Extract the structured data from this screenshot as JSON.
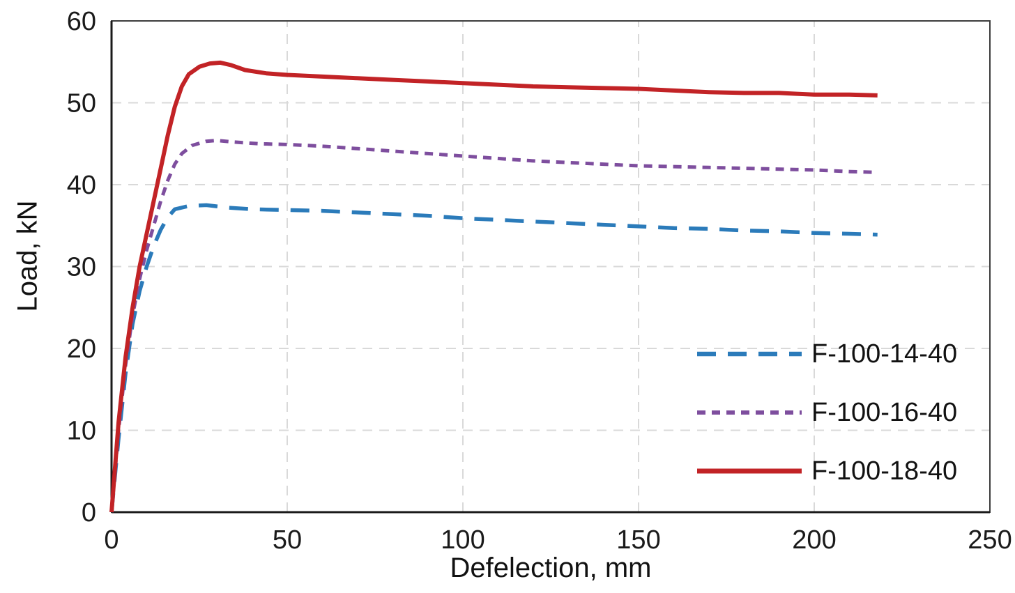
{
  "chart_data": {
    "type": "line",
    "title": "",
    "xlabel": "Defelection, mm",
    "ylabel": "Load, kN",
    "xlim": [
      0,
      250
    ],
    "ylim": [
      0,
      60
    ],
    "xticks": [
      0,
      50,
      100,
      150,
      200,
      250
    ],
    "yticks": [
      0,
      10,
      20,
      30,
      40,
      50,
      60
    ],
    "grid": "dashed",
    "grid_color": "#d9d9d9",
    "legend_position": "inside-right",
    "series": [
      {
        "name": "F-100-14-40",
        "color": "#2b7bba",
        "style": "dashed-long",
        "width": 5.5,
        "points": [
          [
            0,
            0
          ],
          [
            2,
            9
          ],
          [
            4,
            17
          ],
          [
            6,
            23
          ],
          [
            8,
            27
          ],
          [
            10,
            30
          ],
          [
            12,
            32.5
          ],
          [
            14,
            34.5
          ],
          [
            16,
            36
          ],
          [
            18,
            37
          ],
          [
            22,
            37.4
          ],
          [
            27,
            37.5
          ],
          [
            33,
            37.2
          ],
          [
            40,
            37.0
          ],
          [
            50,
            36.9
          ],
          [
            60,
            36.8
          ],
          [
            70,
            36.6
          ],
          [
            80,
            36.4
          ],
          [
            90,
            36.2
          ],
          [
            100,
            35.9
          ],
          [
            110,
            35.7
          ],
          [
            120,
            35.5
          ],
          [
            130,
            35.3
          ],
          [
            140,
            35.1
          ],
          [
            150,
            34.9
          ],
          [
            160,
            34.7
          ],
          [
            170,
            34.6
          ],
          [
            180,
            34.4
          ],
          [
            190,
            34.3
          ],
          [
            200,
            34.1
          ],
          [
            210,
            34.0
          ],
          [
            218,
            33.9
          ]
        ]
      },
      {
        "name": "F-100-16-40",
        "color": "#7e4e9e",
        "style": "dashed-short",
        "width": 5,
        "points": [
          [
            0,
            0
          ],
          [
            2,
            10
          ],
          [
            4,
            18
          ],
          [
            6,
            24
          ],
          [
            8,
            28.5
          ],
          [
            10,
            32
          ],
          [
            12,
            35
          ],
          [
            14,
            38
          ],
          [
            16,
            40.5
          ],
          [
            18,
            42.5
          ],
          [
            20,
            43.8
          ],
          [
            23,
            44.8
          ],
          [
            27,
            45.3
          ],
          [
            30,
            45.4
          ],
          [
            35,
            45.2
          ],
          [
            42,
            45.0
          ],
          [
            50,
            44.9
          ],
          [
            60,
            44.7
          ],
          [
            70,
            44.4
          ],
          [
            80,
            44.1
          ],
          [
            90,
            43.8
          ],
          [
            100,
            43.5
          ],
          [
            110,
            43.2
          ],
          [
            120,
            42.9
          ],
          [
            130,
            42.7
          ],
          [
            140,
            42.5
          ],
          [
            150,
            42.3
          ],
          [
            160,
            42.2
          ],
          [
            170,
            42.1
          ],
          [
            180,
            42.0
          ],
          [
            190,
            41.9
          ],
          [
            200,
            41.8
          ],
          [
            210,
            41.6
          ],
          [
            218,
            41.5
          ]
        ]
      },
      {
        "name": "F-100-18-40",
        "color": "#c22326",
        "style": "solid",
        "width": 6,
        "points": [
          [
            0,
            0
          ],
          [
            2,
            11
          ],
          [
            4,
            19
          ],
          [
            6,
            25
          ],
          [
            8,
            30
          ],
          [
            10,
            34
          ],
          [
            12,
            38
          ],
          [
            14,
            42
          ],
          [
            16,
            46
          ],
          [
            18,
            49.5
          ],
          [
            20,
            52
          ],
          [
            22,
            53.5
          ],
          [
            25,
            54.4
          ],
          [
            28,
            54.8
          ],
          [
            31,
            54.9
          ],
          [
            34,
            54.6
          ],
          [
            38,
            54.0
          ],
          [
            44,
            53.6
          ],
          [
            50,
            53.4
          ],
          [
            60,
            53.2
          ],
          [
            70,
            53.0
          ],
          [
            80,
            52.8
          ],
          [
            90,
            52.6
          ],
          [
            100,
            52.4
          ],
          [
            110,
            52.2
          ],
          [
            120,
            52.0
          ],
          [
            130,
            51.9
          ],
          [
            140,
            51.8
          ],
          [
            150,
            51.7
          ],
          [
            160,
            51.5
          ],
          [
            170,
            51.3
          ],
          [
            180,
            51.2
          ],
          [
            190,
            51.2
          ],
          [
            195,
            51.1
          ],
          [
            200,
            51.0
          ],
          [
            210,
            51.0
          ],
          [
            218,
            50.9
          ]
        ]
      }
    ]
  }
}
